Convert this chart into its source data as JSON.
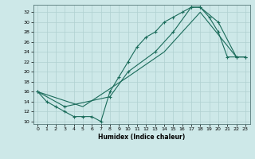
{
  "xlabel": "Humidex (Indice chaleur)",
  "bg_color": "#cde8e8",
  "grid_color": "#b0d0d0",
  "line_color": "#1a6b5a",
  "xlim": [
    -0.5,
    23.5
  ],
  "ylim": [
    9.5,
    33.5
  ],
  "xticks": [
    0,
    1,
    2,
    3,
    4,
    5,
    6,
    7,
    8,
    9,
    10,
    11,
    12,
    13,
    14,
    15,
    16,
    17,
    18,
    19,
    20,
    21,
    22,
    23
  ],
  "yticks": [
    10,
    12,
    14,
    16,
    18,
    20,
    22,
    24,
    26,
    28,
    30,
    32
  ],
  "line1_x": [
    0,
    1,
    2,
    3,
    4,
    5,
    6,
    7,
    8,
    9,
    10,
    11,
    12,
    13,
    14,
    15,
    16,
    17,
    18,
    19,
    20,
    21,
    22,
    23
  ],
  "line1_y": [
    16,
    14,
    13,
    12,
    11,
    11,
    11,
    10,
    16,
    19,
    22,
    25,
    27,
    28,
    30,
    31,
    32,
    33,
    33,
    31,
    28,
    23,
    23,
    23
  ],
  "line2_x": [
    0,
    3,
    8,
    10,
    13,
    15,
    17,
    18,
    20,
    22,
    23
  ],
  "line2_y": [
    16,
    13,
    15,
    20,
    24,
    28,
    33,
    33,
    30,
    23,
    23
  ],
  "line3_x": [
    0,
    5,
    10,
    14,
    18,
    22,
    23
  ],
  "line3_y": [
    16,
    13,
    19,
    24,
    32,
    23,
    23
  ]
}
